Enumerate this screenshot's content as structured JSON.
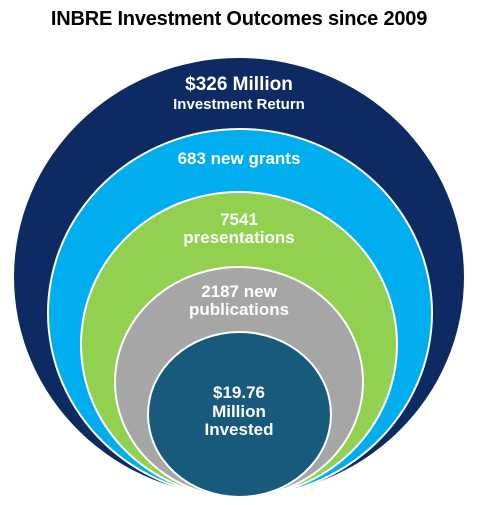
{
  "title": "INBRE Investment Outcomes since 2009",
  "colors": {
    "outer": "#0d2a63",
    "second": "#00adee",
    "third": "#92d050",
    "fourth": "#a6a6a6",
    "inner": "#185a7b"
  },
  "rings": [
    {
      "id": "outer",
      "line1": "$326 Million",
      "line2": "Investment Return"
    },
    {
      "id": "second",
      "line1": "683 new grants"
    },
    {
      "id": "third",
      "line1": "7541",
      "line2": "presentations"
    },
    {
      "id": "fourth",
      "line1": "2187 new",
      "line2": "publications"
    },
    {
      "id": "inner",
      "line1": "$19.76",
      "line2": "Million",
      "line3": "Invested"
    }
  ]
}
